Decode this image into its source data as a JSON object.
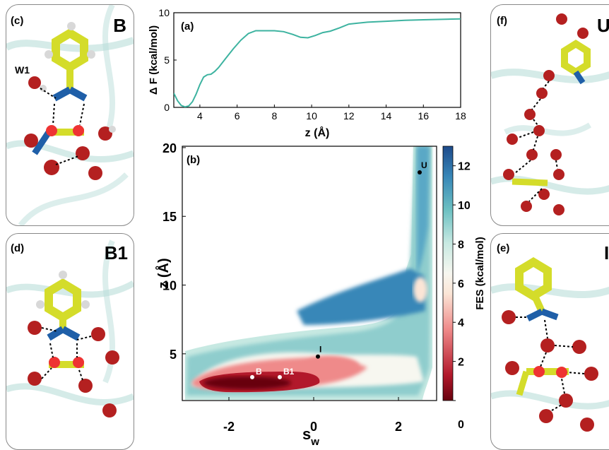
{
  "panels": {
    "c": {
      "label": "(c)",
      "state": "B",
      "annotation": "W1"
    },
    "d": {
      "label": "(d)",
      "state": "B1"
    },
    "f": {
      "label": "(f)",
      "state": "U"
    },
    "e": {
      "label": "(e)",
      "state": "I"
    }
  },
  "colors": {
    "line": "#3db3a0",
    "ring": "#d4dc2a",
    "oxygen": "#b42020",
    "nitrogen": "#1f5fa8",
    "hydrogen": "#d8d8d8",
    "ribbon": "#b9ddd9"
  },
  "chart_data": [
    {
      "type": "line",
      "panel_label": "(a)",
      "xlabel": "z (Å)",
      "ylabel": "Δ F (kcal/mol)",
      "xlim": [
        2.6,
        18
      ],
      "ylim": [
        0,
        10
      ],
      "xticks": [
        4,
        6,
        8,
        10,
        12,
        14,
        16,
        18
      ],
      "yticks": [
        0,
        5,
        10
      ],
      "series": [
        {
          "x": [
            2.6,
            2.8,
            3.0,
            3.2,
            3.4,
            3.6,
            3.8,
            4.0,
            4.2,
            4.4,
            4.6,
            4.8,
            5.0,
            5.4,
            5.8,
            6.2,
            6.6,
            7.0,
            7.5,
            8.0,
            8.5,
            9.0,
            9.4,
            9.8,
            10.2,
            10.6,
            11.0,
            11.5,
            12.0,
            13.0,
            14.0,
            15.0,
            16.0,
            17.0,
            18.0
          ],
          "y": [
            1.5,
            0.7,
            0.2,
            0.05,
            0.15,
            0.6,
            1.4,
            2.4,
            3.2,
            3.45,
            3.5,
            3.8,
            4.2,
            5.2,
            6.2,
            7.1,
            7.8,
            8.1,
            8.1,
            8.1,
            8.0,
            7.7,
            7.4,
            7.35,
            7.6,
            7.9,
            8.05,
            8.4,
            8.8,
            9.0,
            9.1,
            9.2,
            9.25,
            9.3,
            9.35
          ]
        }
      ]
    },
    {
      "type": "heatmap",
      "panel_label": "(b)",
      "xlabel": "s",
      "xlabel_sub": "w",
      "ylabel": "z (Å)",
      "xlim": [
        -3.1,
        2.9
      ],
      "ylim": [
        1.6,
        20.1
      ],
      "xticks": [
        -2,
        0,
        2
      ],
      "yticks": [
        5,
        10,
        15,
        20
      ],
      "colorbar": {
        "label": "FES (kcal/mol)",
        "range": [
          0,
          13
        ],
        "ticks": [
          0,
          2,
          4,
          6,
          8,
          10,
          12
        ]
      },
      "points": [
        {
          "label": "B",
          "sw": -1.45,
          "z": 3.3
        },
        {
          "label": "B1",
          "sw": -0.8,
          "z": 3.3
        },
        {
          "label": "I",
          "sw": 0.1,
          "z": 4.8
        },
        {
          "label": "U",
          "sw": 2.5,
          "z": 18.2
        }
      ]
    }
  ]
}
